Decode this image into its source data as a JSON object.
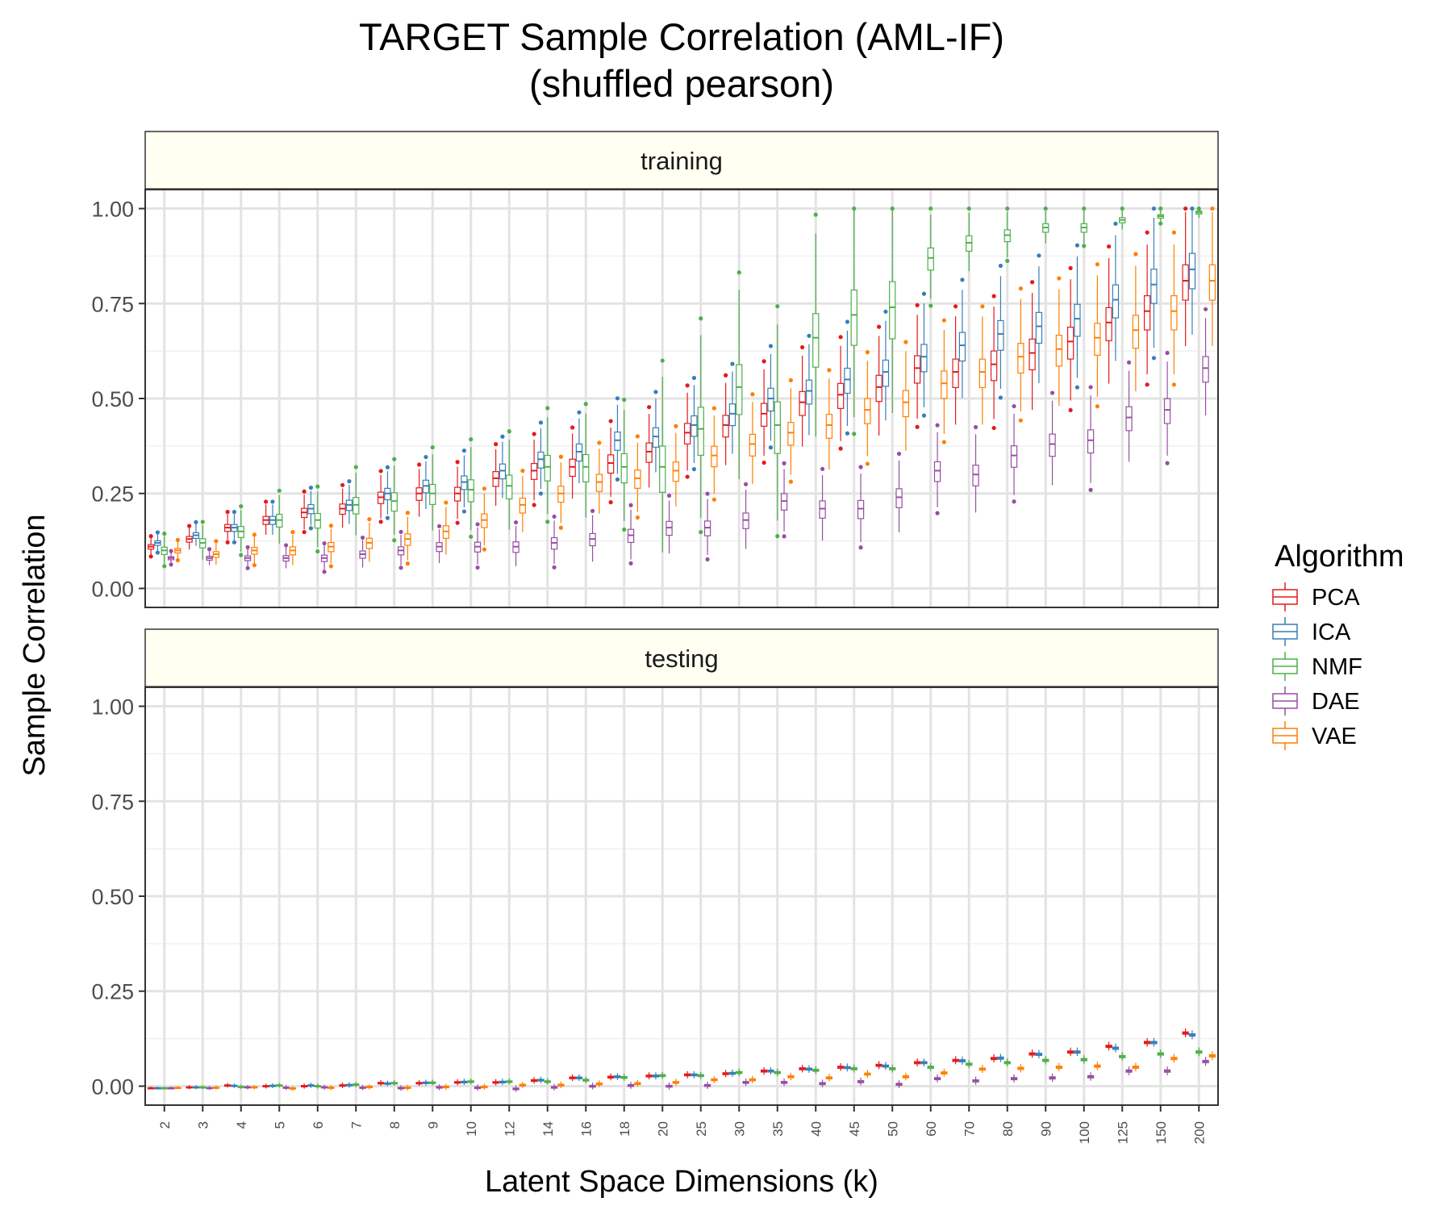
{
  "chart_data": {
    "type": "box",
    "title": "TARGET Sample Correlation (AML-IF)",
    "subtitle": "(shuffled pearson)",
    "xlabel": "Latent Space Dimensions (k)",
    "ylabel": "Sample Correlation",
    "ylim": [
      -0.05,
      1.05
    ],
    "yticks": [
      "0.00",
      "0.25",
      "0.50",
      "0.75",
      "1.00"
    ],
    "categories": [
      "2",
      "3",
      "4",
      "5",
      "6",
      "7",
      "8",
      "9",
      "10",
      "12",
      "14",
      "16",
      "18",
      "20",
      "25",
      "30",
      "35",
      "40",
      "45",
      "50",
      "60",
      "70",
      "80",
      "90",
      "100",
      "125",
      "150",
      "200"
    ],
    "legend": {
      "title": "Algorithm",
      "position": "right",
      "entries": [
        {
          "name": "PCA",
          "color": "#e41a1c"
        },
        {
          "name": "ICA",
          "color": "#377eb8"
        },
        {
          "name": "NMF",
          "color": "#4daf4a"
        },
        {
          "name": "DAE",
          "color": "#984ea3"
        },
        {
          "name": "VAE",
          "color": "#ff7f00"
        }
      ]
    },
    "grid": true,
    "panels": [
      {
        "name": "training",
        "series": [
          {
            "name": "PCA",
            "medians": [
              0.11,
              0.13,
              0.16,
              0.18,
              0.2,
              0.21,
              0.24,
              0.25,
              0.25,
              0.29,
              0.31,
              0.32,
              0.33,
              0.36,
              0.41,
              0.43,
              0.46,
              0.49,
              0.51,
              0.53,
              0.58,
              0.57,
              0.59,
              0.62,
              0.65,
              0.7,
              0.73,
              0.81
            ]
          },
          {
            "name": "ICA",
            "medians": [
              0.12,
              0.14,
              0.16,
              0.18,
              0.21,
              0.22,
              0.25,
              0.27,
              0.28,
              0.31,
              0.34,
              0.36,
              0.39,
              0.4,
              0.43,
              0.46,
              0.5,
              0.52,
              0.55,
              0.57,
              0.61,
              0.64,
              0.67,
              0.69,
              0.71,
              0.76,
              0.8,
              0.84
            ]
          },
          {
            "name": "NMF",
            "medians": [
              0.1,
              0.12,
              0.15,
              0.18,
              0.18,
              0.22,
              0.23,
              0.25,
              0.26,
              0.27,
              0.32,
              0.32,
              0.32,
              0.32,
              0.42,
              0.53,
              0.43,
              0.66,
              0.72,
              0.74,
              0.87,
              0.91,
              0.93,
              0.95,
              0.95,
              0.97,
              0.98,
              0.99
            ]
          },
          {
            "name": "DAE",
            "medians": [
              0.08,
              0.08,
              0.08,
              0.08,
              0.08,
              0.09,
              0.1,
              0.11,
              0.11,
              0.11,
              0.12,
              0.13,
              0.14,
              0.16,
              0.16,
              0.18,
              0.23,
              0.21,
              0.21,
              0.24,
              0.31,
              0.3,
              0.35,
              0.38,
              0.39,
              0.45,
              0.47,
              0.58
            ]
          },
          {
            "name": "VAE",
            "medians": [
              0.1,
              0.09,
              0.1,
              0.1,
              0.11,
              0.12,
              0.13,
              0.15,
              0.18,
              0.22,
              0.25,
              0.28,
              0.29,
              0.31,
              0.35,
              0.38,
              0.41,
              0.43,
              0.47,
              0.49,
              0.54,
              0.57,
              0.61,
              0.63,
              0.66,
              0.68,
              0.73,
              0.81
            ]
          }
        ]
      },
      {
        "name": "testing",
        "series": [
          {
            "name": "PCA",
            "medians": [
              -0.005,
              -0.003,
              0.002,
              0.0,
              0.0,
              0.002,
              0.008,
              0.008,
              0.01,
              0.01,
              0.015,
              0.022,
              0.024,
              0.027,
              0.03,
              0.033,
              0.04,
              0.046,
              0.05,
              0.055,
              0.062,
              0.068,
              0.073,
              0.085,
              0.09,
              0.105,
              0.115,
              0.14
            ]
          },
          {
            "name": "ICA",
            "medians": [
              -0.005,
              -0.003,
              0.001,
              0.001,
              0.002,
              0.003,
              0.007,
              0.009,
              0.011,
              0.011,
              0.016,
              0.022,
              0.025,
              0.027,
              0.03,
              0.034,
              0.04,
              0.045,
              0.049,
              0.053,
              0.062,
              0.067,
              0.074,
              0.084,
              0.09,
              0.1,
              0.115,
              0.135
            ]
          },
          {
            "name": "NMF",
            "medians": [
              -0.005,
              -0.003,
              -0.002,
              0.002,
              0.0,
              0.004,
              0.008,
              0.009,
              0.012,
              0.012,
              0.012,
              0.016,
              0.023,
              0.028,
              0.028,
              0.036,
              0.036,
              0.042,
              0.046,
              0.046,
              0.05,
              0.058,
              0.062,
              0.068,
              0.07,
              0.078,
              0.085,
              0.09
            ]
          },
          {
            "name": "DAE",
            "medians": [
              -0.005,
              -0.005,
              -0.003,
              -0.004,
              -0.003,
              -0.004,
              -0.005,
              -0.003,
              -0.004,
              -0.007,
              -0.003,
              0.0,
              0.002,
              0.0,
              0.002,
              0.01,
              0.01,
              0.007,
              0.012,
              0.005,
              0.02,
              0.014,
              0.02,
              0.022,
              0.025,
              0.04,
              0.04,
              0.065
            ]
          },
          {
            "name": "VAE",
            "medians": [
              -0.004,
              -0.004,
              -0.003,
              -0.006,
              -0.004,
              -0.002,
              -0.004,
              -0.002,
              -0.002,
              0.003,
              0.003,
              0.006,
              0.007,
              0.01,
              0.017,
              0.017,
              0.025,
              0.022,
              0.032,
              0.025,
              0.035,
              0.045,
              0.047,
              0.05,
              0.053,
              0.05,
              0.073,
              0.08
            ]
          }
        ]
      }
    ]
  }
}
